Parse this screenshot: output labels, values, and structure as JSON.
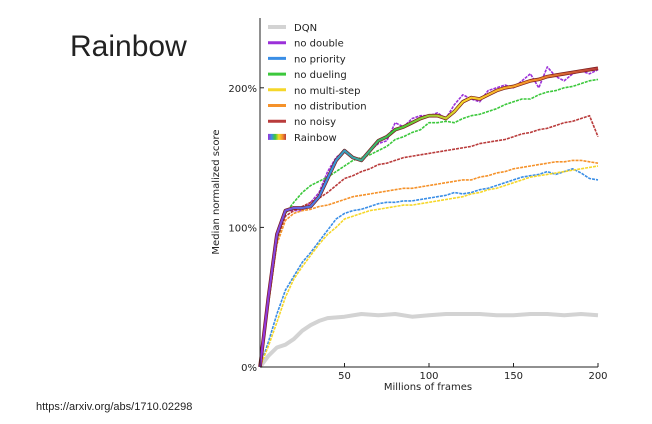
{
  "slide": {
    "title": "Rainbow",
    "source": "https://arxiv.org/abs/1710.02298"
  },
  "chart_data": {
    "type": "line",
    "xlabel": "Millions of frames",
    "ylabel": "Median normalized score",
    "xlim": [
      0,
      200
    ],
    "ylim": [
      0,
      250
    ],
    "x_ticks": [
      50,
      100,
      150,
      200
    ],
    "x_tick_labels": [
      "50",
      "100",
      "150",
      "200"
    ],
    "y_ticks": [
      0,
      100,
      200
    ],
    "y_tick_labels": [
      "0%",
      "100%",
      "200%"
    ],
    "legend_position": "top-left",
    "series": [
      {
        "name": "DQN",
        "color": "#d3d3d3",
        "width": 4,
        "x": [
          0,
          5,
          10,
          15,
          20,
          25,
          30,
          35,
          40,
          50,
          60,
          70,
          80,
          90,
          100,
          110,
          120,
          130,
          140,
          150,
          160,
          170,
          180,
          190,
          200
        ],
        "y": [
          0,
          8,
          14,
          16,
          20,
          26,
          30,
          33,
          35,
          36,
          38,
          37,
          38,
          36,
          37,
          38,
          38,
          38,
          37,
          37,
          38,
          38,
          37,
          38,
          37
        ]
      },
      {
        "name": "no double",
        "color": "#9b30d9",
        "width": 1.6,
        "x": [
          0,
          5,
          10,
          15,
          20,
          25,
          30,
          35,
          40,
          45,
          50,
          55,
          60,
          65,
          70,
          75,
          80,
          85,
          90,
          95,
          100,
          105,
          110,
          115,
          120,
          125,
          130,
          135,
          140,
          145,
          150,
          155,
          160,
          165,
          170,
          175,
          180,
          185,
          190,
          195,
          200
        ],
        "y": [
          0,
          50,
          95,
          112,
          112,
          112,
          118,
          125,
          140,
          150,
          155,
          150,
          148,
          155,
          160,
          162,
          175,
          172,
          178,
          180,
          180,
          182,
          178,
          188,
          195,
          192,
          190,
          198,
          200,
          202,
          200,
          205,
          210,
          200,
          215,
          208,
          205,
          210,
          212,
          210,
          213
        ]
      },
      {
        "name": "no priority",
        "color": "#3a8ee6",
        "width": 1.6,
        "x": [
          0,
          5,
          10,
          15,
          20,
          25,
          30,
          35,
          40,
          45,
          50,
          55,
          60,
          65,
          70,
          75,
          80,
          85,
          90,
          95,
          100,
          105,
          110,
          115,
          120,
          125,
          130,
          135,
          140,
          145,
          150,
          155,
          160,
          165,
          170,
          175,
          180,
          185,
          190,
          195,
          200
        ],
        "y": [
          0,
          18,
          38,
          55,
          65,
          75,
          82,
          90,
          98,
          106,
          110,
          112,
          113,
          115,
          117,
          118,
          118,
          119,
          119,
          120,
          121,
          122,
          123,
          125,
          124,
          125,
          127,
          128,
          130,
          132,
          134,
          136,
          137,
          138,
          140,
          138,
          140,
          142,
          139,
          135,
          134
        ]
      },
      {
        "name": "no dueling",
        "color": "#3cc83c",
        "width": 1.6,
        "x": [
          0,
          5,
          10,
          15,
          20,
          25,
          30,
          35,
          40,
          45,
          50,
          55,
          60,
          65,
          70,
          75,
          80,
          85,
          90,
          95,
          100,
          105,
          110,
          115,
          120,
          125,
          130,
          135,
          140,
          145,
          150,
          155,
          160,
          165,
          170,
          175,
          180,
          185,
          190,
          195,
          200
        ],
        "y": [
          0,
          45,
          90,
          110,
          118,
          125,
          130,
          133,
          136,
          140,
          144,
          148,
          150,
          152,
          155,
          158,
          163,
          165,
          168,
          170,
          175,
          175,
          176,
          175,
          178,
          180,
          181,
          183,
          185,
          188,
          190,
          192,
          192,
          195,
          197,
          198,
          200,
          201,
          203,
          205,
          206
        ]
      },
      {
        "name": "no multi-step",
        "color": "#f5d72a",
        "width": 1.6,
        "x": [
          0,
          5,
          10,
          15,
          20,
          25,
          30,
          35,
          40,
          45,
          50,
          55,
          60,
          65,
          70,
          75,
          80,
          85,
          90,
          95,
          100,
          105,
          110,
          115,
          120,
          125,
          130,
          135,
          140,
          145,
          150,
          155,
          160,
          165,
          170,
          175,
          180,
          185,
          190,
          195,
          200
        ],
        "y": [
          0,
          15,
          32,
          50,
          63,
          72,
          80,
          88,
          95,
          100,
          106,
          108,
          110,
          112,
          113,
          114,
          115,
          116,
          116,
          117,
          118,
          119,
          120,
          121,
          122,
          124,
          125,
          127,
          128,
          130,
          132,
          134,
          136,
          137,
          138,
          139,
          140,
          141,
          142,
          143,
          144
        ]
      },
      {
        "name": "no distribution",
        "color": "#f5922a",
        "width": 1.6,
        "x": [
          0,
          5,
          10,
          15,
          20,
          25,
          30,
          35,
          40,
          45,
          50,
          55,
          60,
          65,
          70,
          75,
          80,
          85,
          90,
          95,
          100,
          105,
          110,
          115,
          120,
          125,
          130,
          135,
          140,
          145,
          150,
          155,
          160,
          165,
          170,
          175,
          180,
          185,
          190,
          195,
          200
        ],
        "y": [
          0,
          45,
          88,
          105,
          110,
          112,
          113,
          115,
          116,
          118,
          120,
          122,
          123,
          124,
          125,
          126,
          127,
          128,
          128,
          129,
          130,
          131,
          132,
          133,
          134,
          134,
          136,
          137,
          139,
          140,
          142,
          143,
          144,
          145,
          146,
          147,
          147,
          148,
          148,
          147,
          146
        ]
      },
      {
        "name": "no noisy",
        "color": "#b93b3b",
        "width": 1.6,
        "x": [
          0,
          5,
          10,
          15,
          20,
          25,
          30,
          35,
          40,
          45,
          50,
          55,
          60,
          65,
          70,
          75,
          80,
          85,
          90,
          95,
          100,
          105,
          110,
          115,
          120,
          125,
          130,
          135,
          140,
          145,
          150,
          155,
          160,
          165,
          170,
          175,
          180,
          185,
          190,
          195,
          200
        ],
        "y": [
          0,
          50,
          92,
          108,
          112,
          115,
          118,
          121,
          125,
          130,
          135,
          137,
          140,
          142,
          145,
          146,
          148,
          150,
          151,
          152,
          153,
          154,
          155,
          156,
          157,
          158,
          160,
          161,
          162,
          163,
          165,
          167,
          168,
          170,
          171,
          173,
          175,
          176,
          178,
          180,
          165
        ]
      },
      {
        "name": "Rainbow",
        "color": "#7a1a1a",
        "width": 2.2,
        "rainbow": true,
        "x": [
          0,
          5,
          10,
          15,
          20,
          25,
          30,
          35,
          40,
          45,
          50,
          55,
          60,
          65,
          70,
          75,
          80,
          85,
          90,
          95,
          100,
          105,
          110,
          115,
          120,
          125,
          130,
          135,
          140,
          145,
          150,
          155,
          160,
          165,
          170,
          175,
          180,
          185,
          190,
          195,
          200
        ],
        "y": [
          0,
          50,
          95,
          112,
          114,
          114,
          115,
          122,
          135,
          148,
          155,
          150,
          148,
          155,
          162,
          165,
          170,
          172,
          175,
          178,
          180,
          180,
          178,
          183,
          190,
          193,
          192,
          195,
          198,
          200,
          201,
          203,
          205,
          206,
          208,
          209,
          210,
          211,
          212,
          213,
          214
        ]
      }
    ]
  }
}
